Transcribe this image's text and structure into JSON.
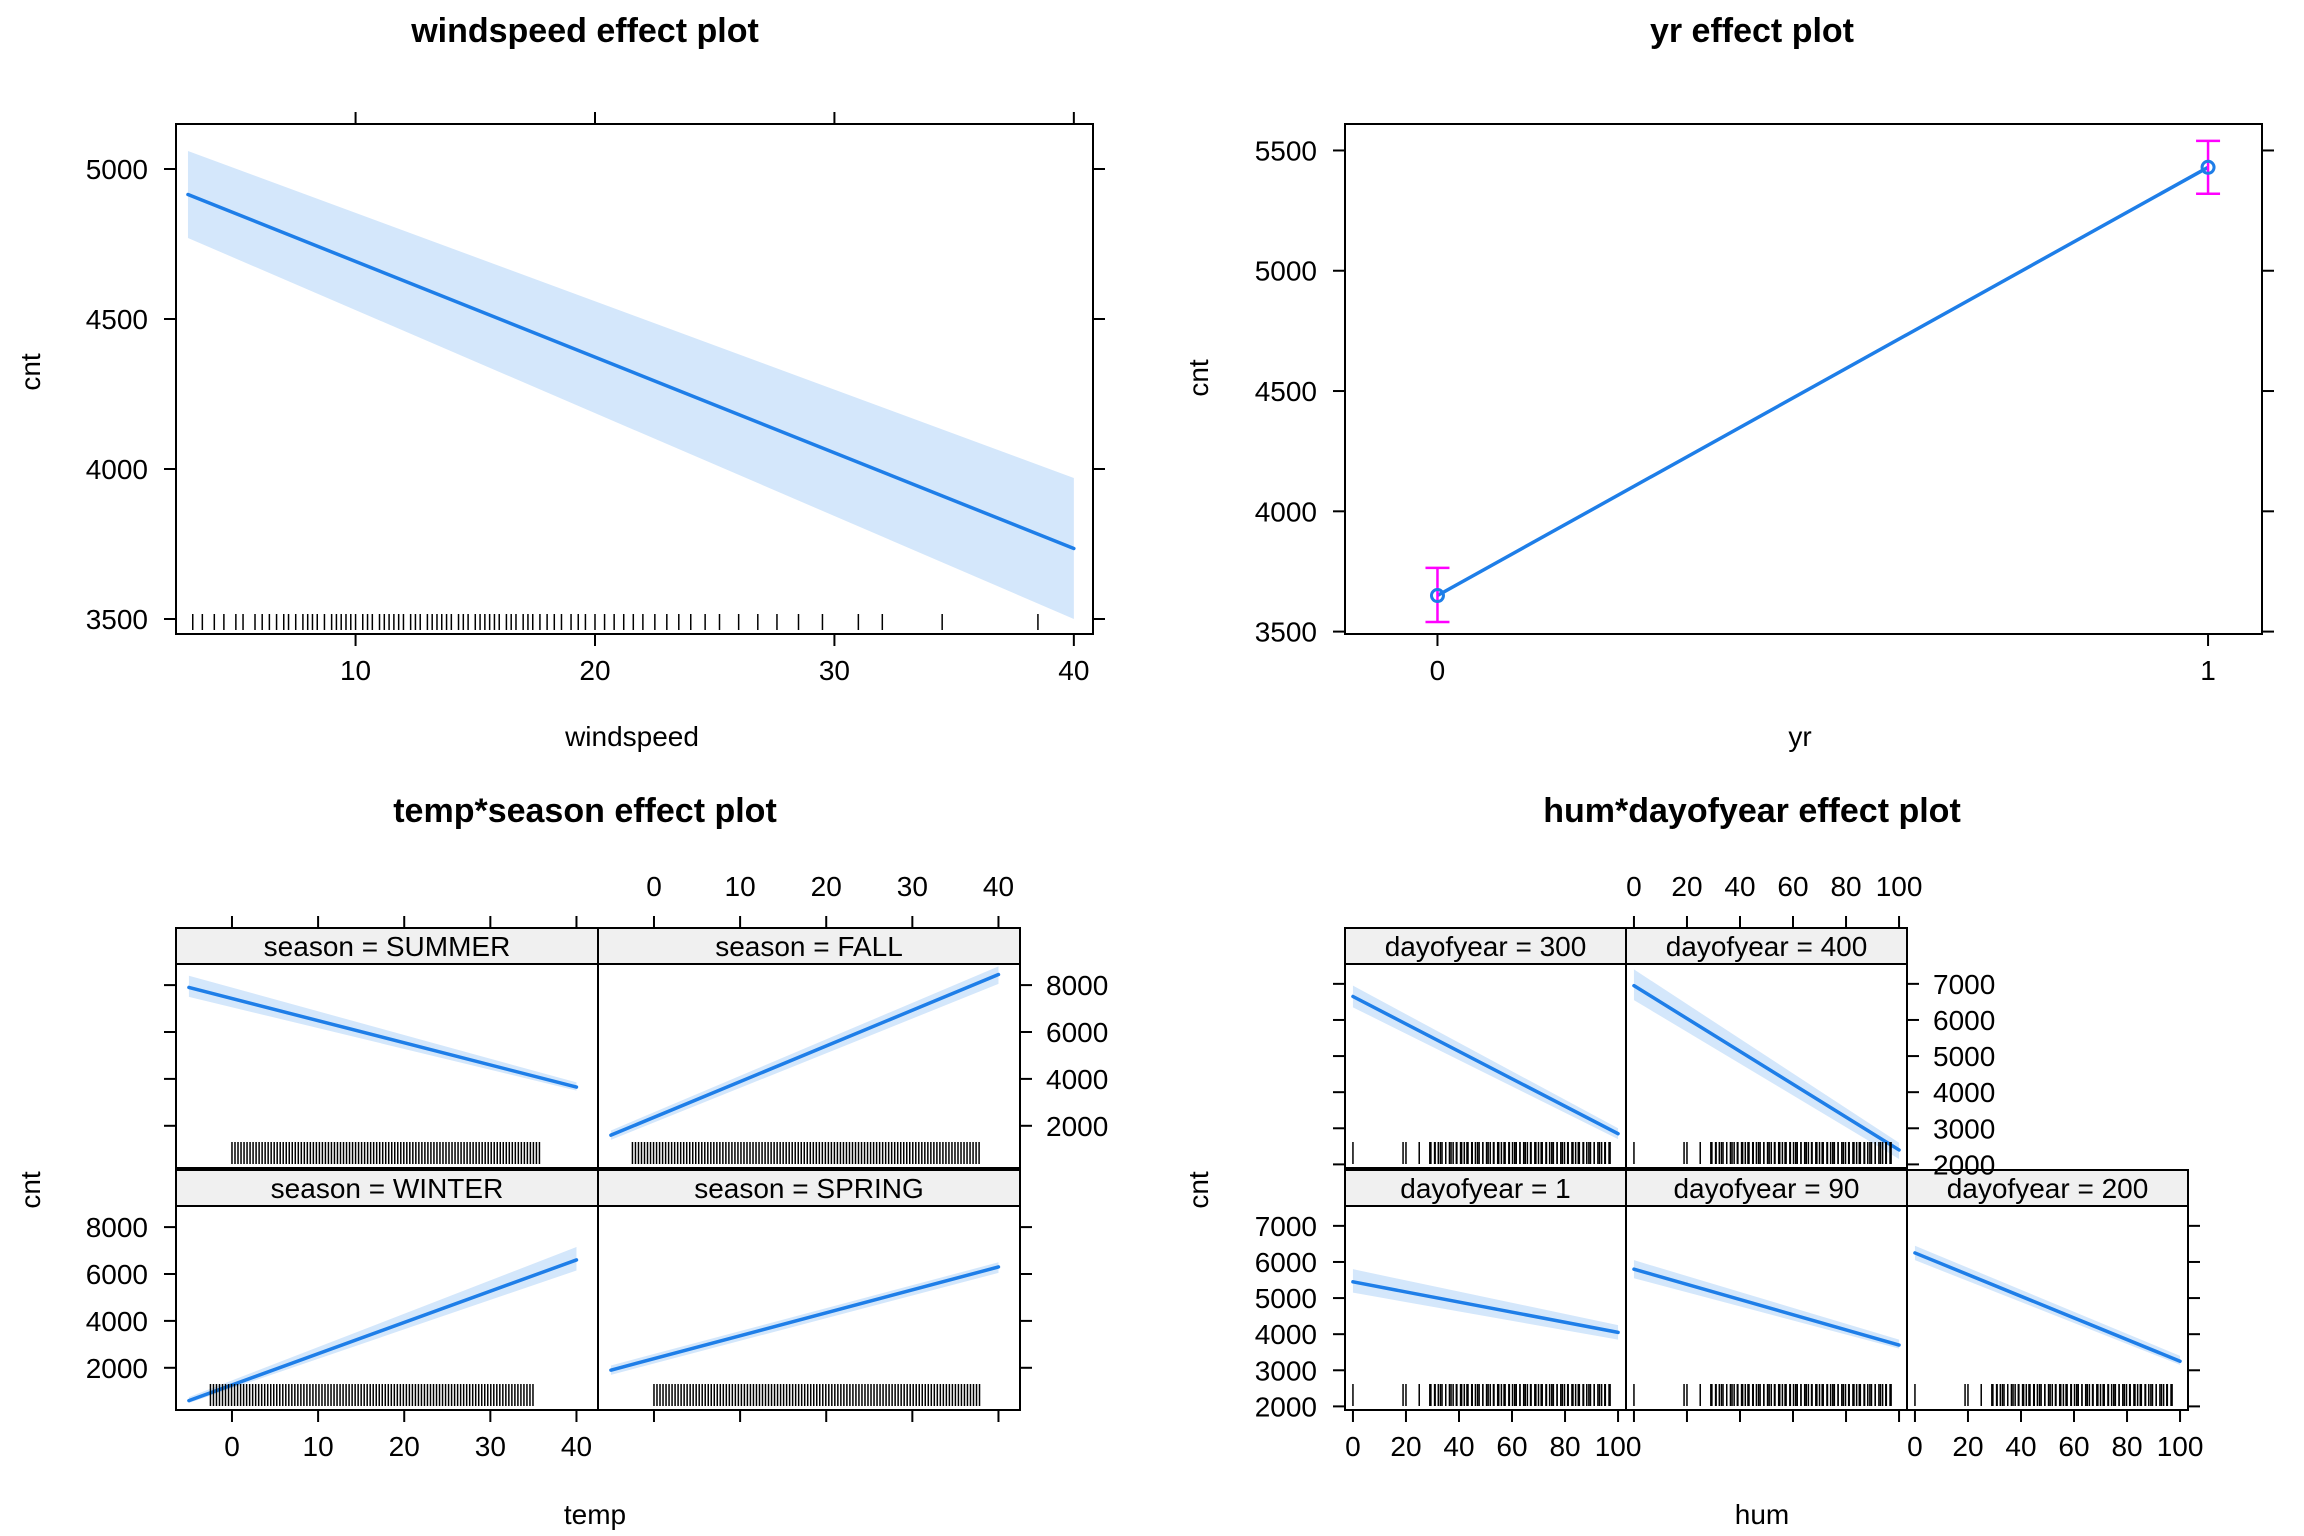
{
  "chart_data": [
    {
      "id": "windspeed",
      "type": "line",
      "title": "windspeed effect plot",
      "xlabel": "windspeed",
      "ylabel": "cnt",
      "xlim": [
        2.5,
        40.8
      ],
      "ylim": [
        3450,
        5150
      ],
      "xticks": [
        10,
        20,
        30,
        40
      ],
      "yticks": [
        3500,
        4000,
        4500,
        5000
      ],
      "series": [
        {
          "x": [
            3,
            40
          ],
          "y": [
            4915,
            3735
          ],
          "lower": [
            4770,
            3500
          ],
          "upper": [
            5060,
            3970
          ]
        }
      ],
      "rug": [
        3.2,
        3.6,
        4.1,
        4.5,
        5.0,
        5.3,
        5.8,
        6.1,
        6.4,
        6.7,
        7.0,
        7.2,
        7.5,
        7.8,
        8.0,
        8.2,
        8.4,
        8.7,
        9.0,
        9.2,
        9.4,
        9.6,
        9.8,
        10.0,
        10.3,
        10.5,
        10.7,
        11.0,
        11.2,
        11.4,
        11.6,
        11.8,
        12.0,
        12.3,
        12.5,
        12.7,
        13.0,
        13.2,
        13.4,
        13.6,
        13.8,
        14.0,
        14.3,
        14.5,
        14.7,
        15.0,
        15.2,
        15.4,
        15.6,
        15.8,
        16.0,
        16.3,
        16.5,
        16.7,
        17.0,
        17.2,
        17.4,
        17.7,
        18.0,
        18.3,
        18.6,
        19.0,
        19.3,
        19.6,
        20.0,
        20.4,
        20.8,
        21.2,
        21.6,
        22.0,
        22.5,
        23.0,
        23.5,
        24.0,
        24.6,
        25.2,
        26.0,
        26.8,
        27.6,
        28.5,
        29.5,
        31.0,
        32.0,
        34.5,
        38.5
      ],
      "colors": {
        "line": "#1e7ee8",
        "band": "#d4e7fb"
      }
    },
    {
      "id": "yr",
      "type": "line",
      "title": "yr effect plot",
      "xlabel": "yr",
      "ylabel": "cnt",
      "xlim": [
        -0.12,
        1.07
      ],
      "ylim": [
        3490,
        5610
      ],
      "xticks": [
        0,
        1
      ],
      "yticks": [
        3500,
        4000,
        4500,
        5000,
        5500
      ],
      "series": [
        {
          "x": [
            0,
            1
          ],
          "y": [
            3650,
            5430
          ],
          "lower": [
            3540,
            5320
          ],
          "upper": [
            3765,
            5540
          ]
        }
      ],
      "colors": {
        "line": "#1e7ee8",
        "errorbar": "#ff00ff"
      }
    },
    {
      "id": "temp_season",
      "type": "line",
      "title": "temp*season effect plot",
      "xlabel": "temp",
      "ylabel": "cnt",
      "xlim": [
        -6.5,
        42.5
      ],
      "ylim": [
        200,
        8900
      ],
      "xticks": [
        0,
        10,
        20,
        30,
        40
      ],
      "yticks": [
        2000,
        4000,
        6000,
        8000
      ],
      "panels": [
        {
          "strip": "season = WINTER",
          "x": [
            -5,
            40
          ],
          "y": [
            600,
            6600
          ],
          "lower": [
            500,
            6150
          ],
          "upper": [
            750,
            7150
          ],
          "rug": [
            -2.5,
            2.5,
            32,
            35
          ]
        },
        {
          "strip": "season = SPRING",
          "x": [
            -5,
            40
          ],
          "y": [
            1900,
            6300
          ],
          "lower": [
            1700,
            6050
          ],
          "upper": [
            2100,
            6500
          ],
          "rug": [
            0,
            2,
            36,
            38
          ]
        },
        {
          "strip": "season = SUMMER",
          "x": [
            -5,
            40
          ],
          "y": [
            7900,
            3650
          ],
          "lower": [
            7500,
            3500
          ],
          "upper": [
            8400,
            3850
          ],
          "rug": [
            0,
            2,
            34,
            36
          ]
        },
        {
          "strip": "season = FALL",
          "x": [
            -5,
            40
          ],
          "y": [
            1600,
            8450
          ],
          "lower": [
            1400,
            8050
          ],
          "upper": [
            1800,
            8800
          ],
          "rug": [
            -2.5,
            2.5,
            36,
            38
          ]
        }
      ],
      "colors": {
        "line": "#1e7ee8",
        "band": "#d4e7fb",
        "strip": "#f0f0f0"
      }
    },
    {
      "id": "hum_dayofyear",
      "type": "line",
      "title": "hum*dayofyear effect plot",
      "xlabel": "hum",
      "ylabel": "cnt",
      "xlim": [
        -3,
        103
      ],
      "ylim": [
        1900,
        7550
      ],
      "xticks": [
        0,
        20,
        40,
        60,
        80,
        100
      ],
      "yticks": [
        2000,
        3000,
        4000,
        5000,
        6000,
        7000
      ],
      "panels": [
        {
          "strip": "dayofyear = 1",
          "x": [
            0,
            100
          ],
          "y": [
            5450,
            4050
          ],
          "lower": [
            5150,
            3850
          ],
          "upper": [
            5800,
            4250
          ]
        },
        {
          "strip": "dayofyear = 90",
          "x": [
            0,
            100
          ],
          "y": [
            5800,
            3700
          ],
          "lower": [
            5550,
            3600
          ],
          "upper": [
            6050,
            3850
          ]
        },
        {
          "strip": "dayofyear = 200",
          "x": [
            0,
            100
          ],
          "y": [
            6250,
            3250
          ],
          "lower": [
            6050,
            3150
          ],
          "upper": [
            6450,
            3400
          ]
        },
        {
          "strip": "dayofyear = 300",
          "x": [
            0,
            100
          ],
          "y": [
            6650,
            2850
          ],
          "lower": [
            6350,
            2700
          ],
          "upper": [
            6950,
            3000
          ]
        },
        {
          "strip": "dayofyear = 400",
          "x": [
            0,
            100
          ],
          "y": [
            6950,
            2400
          ],
          "lower": [
            6550,
            2150
          ],
          "upper": [
            7400,
            2600
          ]
        }
      ],
      "rug": [
        0,
        18.9,
        20,
        25,
        29,
        31,
        33,
        35,
        37,
        39,
        41,
        43,
        45,
        47,
        49,
        51,
        53,
        55,
        57,
        59,
        61,
        63,
        65,
        67,
        69,
        71,
        73,
        75,
        77,
        79,
        81,
        83,
        85,
        87,
        89,
        91,
        93,
        95,
        97
      ],
      "colors": {
        "line": "#1e7ee8",
        "band": "#d4e7fb",
        "strip": "#f0f0f0"
      }
    }
  ]
}
